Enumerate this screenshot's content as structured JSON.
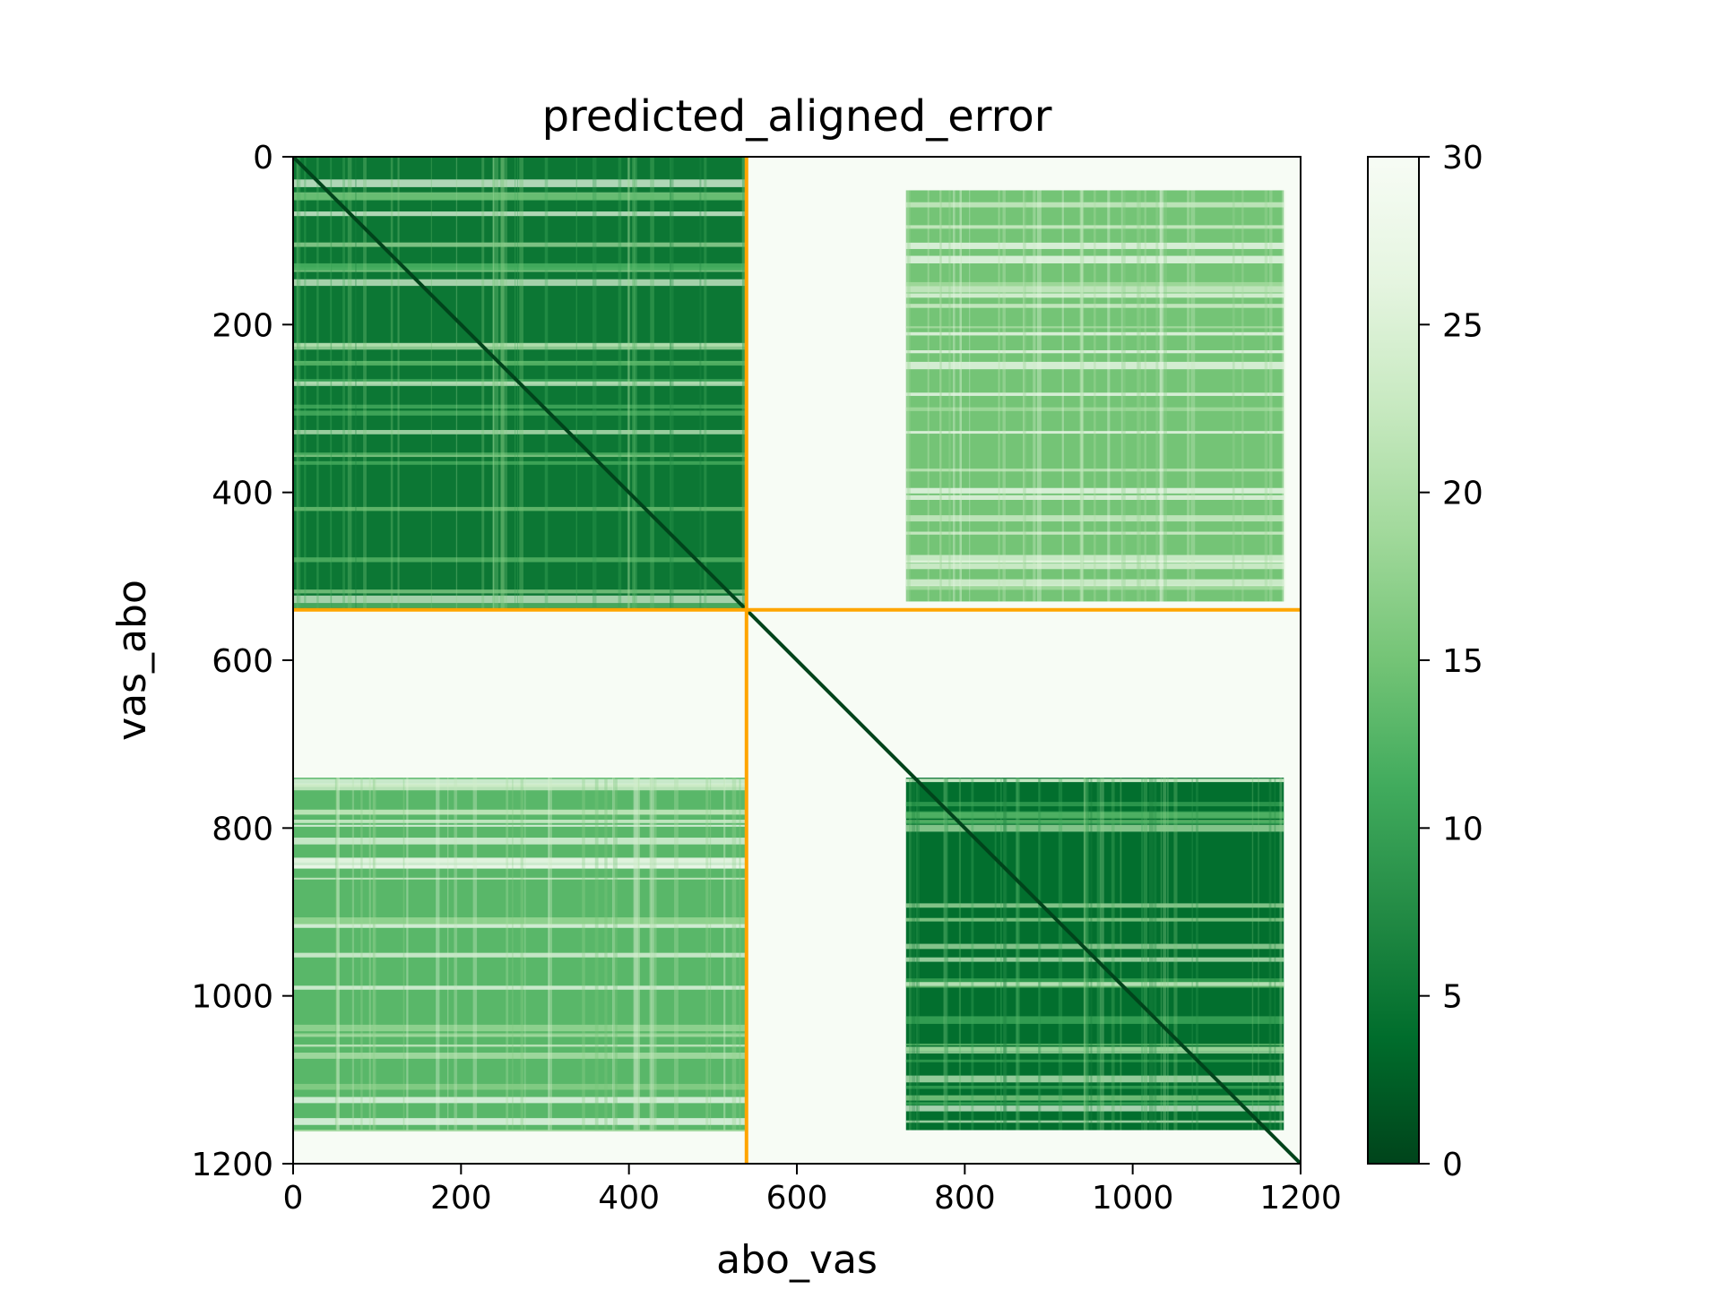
{
  "chart_data": {
    "type": "heatmap",
    "title": "predicted_aligned_error",
    "xlabel": "abo_vas",
    "ylabel": "vas_abo",
    "xlim": [
      0,
      1200
    ],
    "ylim": [
      1200,
      0
    ],
    "x_ticks": [
      0,
      200,
      400,
      600,
      800,
      1000,
      1200
    ],
    "y_ticks": [
      0,
      200,
      400,
      600,
      800,
      1000,
      1200
    ],
    "colorbar": {
      "range": [
        0,
        30
      ],
      "ticks": [
        0,
        5,
        10,
        15,
        20,
        25,
        30
      ],
      "colormap": "Greens_r",
      "colors": [
        "#00441b",
        "#006d2c",
        "#238b45",
        "#41ab5d",
        "#74c476",
        "#a1d99b",
        "#c7e9c0",
        "#e5f5e0",
        "#f7fcf5"
      ]
    },
    "chain_boundary": 540,
    "boundary_color": "#ffa500",
    "blocks": [
      {
        "name": "abo-abo",
        "x_range": [
          0,
          540
        ],
        "y_range": [
          0,
          540
        ],
        "approx_error": 5
      },
      {
        "name": "abo-vas",
        "x_range": [
          730,
          1180
        ],
        "y_range": [
          40,
          530
        ],
        "approx_error": 15
      },
      {
        "name": "vas-abo",
        "x_range": [
          0,
          540
        ],
        "y_range": [
          740,
          1160
        ],
        "approx_error": 13
      },
      {
        "name": "vas-vas",
        "x_range": [
          730,
          1180
        ],
        "y_range": [
          740,
          1160
        ],
        "approx_error": 4
      },
      {
        "name": "background",
        "approx_error": 29
      }
    ],
    "grid": false
  }
}
